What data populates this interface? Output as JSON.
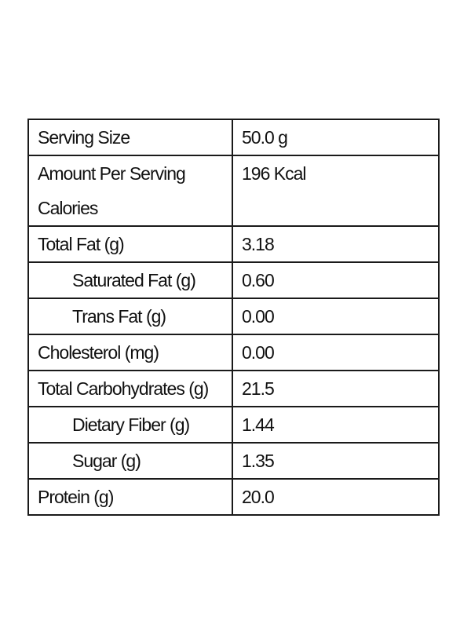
{
  "nutrition": {
    "rows": [
      {
        "label": "Serving Size",
        "value": "50.0 g"
      },
      {
        "label_line1": "Amount Per Serving",
        "label_line2": "Calories",
        "value": "196 Kcal"
      },
      {
        "label": "Total Fat (g)",
        "value": "3.18"
      },
      {
        "label": "Saturated Fat (g)",
        "value": "0.60"
      },
      {
        "label": "Trans Fat (g)",
        "value": "0.00"
      },
      {
        "label": "Cholesterol (mg)",
        "value": "0.00"
      },
      {
        "label": "Total Carbohydrates (g)",
        "value": "21.5"
      },
      {
        "label": "Dietary Fiber (g)",
        "value": "1.44"
      },
      {
        "label": "Sugar (g)",
        "value": "1.35"
      },
      {
        "label": "Protein (g)",
        "value": "20.0"
      }
    ]
  }
}
